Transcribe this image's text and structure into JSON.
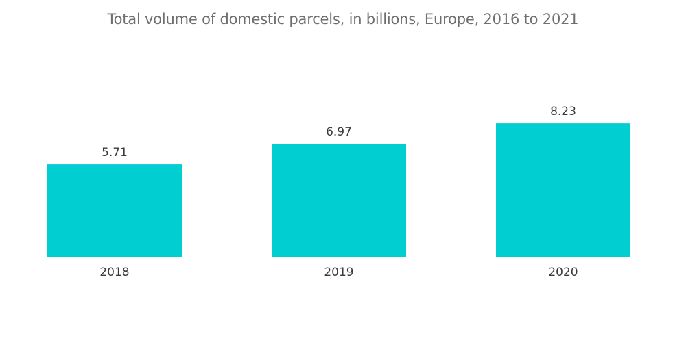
{
  "chart_data": {
    "type": "bar",
    "title": "Total volume of domestic parcels, in billions, Europe, 2016 to 2021",
    "categories": [
      "2018",
      "2019",
      "2020"
    ],
    "values": [
      5.71,
      6.97,
      8.23
    ],
    "value_labels": [
      "5.71",
      "6.97",
      "8.23"
    ],
    "xlabel": "",
    "ylabel": "",
    "ylim": [
      0,
      9.5
    ],
    "grid": false,
    "legend": "none",
    "bar_color": "#00ced1"
  }
}
